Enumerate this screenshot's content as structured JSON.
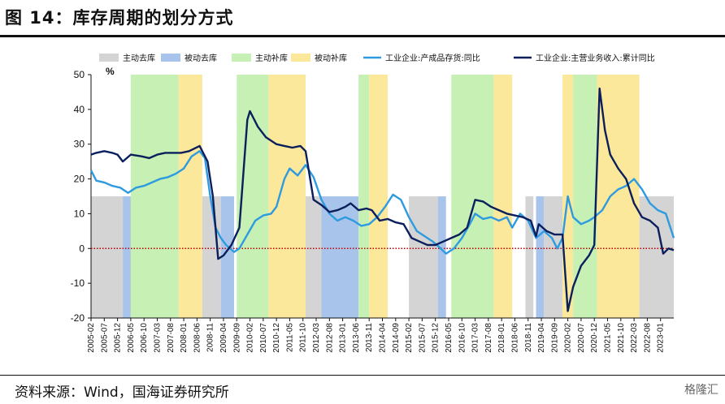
{
  "header": {
    "title": "图 14：库存周期的划分方式"
  },
  "footer": {
    "source": "资料来源：Wind，国海证券研究所",
    "watermark": "格隆汇"
  },
  "colors": {
    "active_destock": "#d4d4d4",
    "passive_destock": "#a8c4ea",
    "active_restock": "#c6f0b4",
    "passive_restock": "#fce89a",
    "inventory_line": "#2e9be0",
    "revenue_line": "#0a1f5c",
    "zero_line": "#c00000"
  },
  "chart_data": {
    "type": "line",
    "unit_label": "%",
    "ylim": [
      -20,
      50
    ],
    "yticks": [
      -20,
      -10,
      0,
      10,
      20,
      30,
      40,
      50
    ],
    "xlim": [
      "2005-02",
      "2023-06"
    ],
    "xticks": [
      "2005-02",
      "2005-07",
      "2005-12",
      "2006-05",
      "2006-10",
      "2007-03",
      "2007-08",
      "2008-01",
      "2008-06",
      "2008-11",
      "2009-04",
      "2009-09",
      "2010-02",
      "2010-07",
      "2010-12",
      "2011-05",
      "2011-10",
      "2012-03",
      "2012-08",
      "2013-01",
      "2013-06",
      "2013-11",
      "2014-04",
      "2014-09",
      "2015-02",
      "2015-07",
      "2015-12",
      "2016-05",
      "2016-10",
      "2017-03",
      "2017-08",
      "2018-01",
      "2018-06",
      "2018-11",
      "2019-04",
      "2019-09",
      "2020-02",
      "2020-07",
      "2020-12",
      "2021-05",
      "2021-10",
      "2022-03",
      "2022-08",
      "2023-01"
    ],
    "legend": [
      {
        "key": "active_destock",
        "label": "主动去库",
        "kind": "box"
      },
      {
        "key": "passive_destock",
        "label": "被动去库",
        "kind": "box"
      },
      {
        "key": "active_restock",
        "label": "主动补库",
        "kind": "box"
      },
      {
        "key": "passive_restock",
        "label": "被动补库",
        "kind": "box"
      },
      {
        "key": "inventory_line",
        "label": "工业企业:产成品存货:同比",
        "kind": "line"
      },
      {
        "key": "revenue_line",
        "label": "工业企业:主营业务收入:累计同比",
        "kind": "line"
      }
    ],
    "phases": [
      {
        "type": "active_destock",
        "start": "2005-02",
        "end": "2006-02"
      },
      {
        "type": "passive_destock",
        "start": "2006-02",
        "end": "2006-05"
      },
      {
        "type": "active_restock",
        "start": "2006-05",
        "end": "2007-11"
      },
      {
        "type": "passive_restock",
        "start": "2007-11",
        "end": "2008-08"
      },
      {
        "type": "active_destock",
        "start": "2008-08",
        "end": "2009-03"
      },
      {
        "type": "passive_destock",
        "start": "2009-03",
        "end": "2009-08"
      },
      {
        "type": "active_restock",
        "start": "2009-09",
        "end": "2010-09"
      },
      {
        "type": "passive_restock",
        "start": "2010-09",
        "end": "2011-11"
      },
      {
        "type": "active_destock",
        "start": "2011-11",
        "end": "2012-05"
      },
      {
        "type": "passive_destock",
        "start": "2012-05",
        "end": "2013-07"
      },
      {
        "type": "active_restock",
        "start": "2013-07",
        "end": "2013-11"
      },
      {
        "type": "passive_restock",
        "start": "2013-11",
        "end": "2014-06"
      },
      {
        "type": "active_destock",
        "start": "2015-02",
        "end": "2016-01"
      },
      {
        "type": "passive_destock",
        "start": "2016-01",
        "end": "2016-04"
      },
      {
        "type": "active_restock",
        "start": "2016-06",
        "end": "2017-10"
      },
      {
        "type": "passive_restock",
        "start": "2017-10",
        "end": "2018-05"
      },
      {
        "type": "active_destock",
        "start": "2018-10",
        "end": "2019-01"
      },
      {
        "type": "passive_destock",
        "start": "2019-02",
        "end": "2019-05"
      },
      {
        "type": "active_destock",
        "start": "2019-05",
        "end": "2019-12"
      },
      {
        "type": "passive_restock",
        "start": "2019-12",
        "end": "2020-04"
      },
      {
        "type": "active_restock",
        "start": "2020-04",
        "end": "2021-01"
      },
      {
        "type": "passive_restock",
        "start": "2021-01",
        "end": "2022-05"
      },
      {
        "type": "active_destock",
        "start": "2022-05",
        "end": "2023-06"
      }
    ],
    "series": [
      {
        "key": "inventory_line",
        "name": "工业企业:产成品存货:同比",
        "points": [
          [
            "2005-02",
            22.5
          ],
          [
            "2005-04",
            19.5
          ],
          [
            "2005-07",
            19
          ],
          [
            "2005-10",
            18
          ],
          [
            "2006-01",
            17.5
          ],
          [
            "2006-04",
            16
          ],
          [
            "2006-07",
            17.5
          ],
          [
            "2006-10",
            18
          ],
          [
            "2007-01",
            19
          ],
          [
            "2007-04",
            20
          ],
          [
            "2007-07",
            20.5
          ],
          [
            "2007-10",
            21.5
          ],
          [
            "2008-01",
            23
          ],
          [
            "2008-04",
            26.5
          ],
          [
            "2008-07",
            28
          ],
          [
            "2008-09",
            26
          ],
          [
            "2008-11",
            15
          ],
          [
            "2009-01",
            6
          ],
          [
            "2009-03",
            3
          ],
          [
            "2009-05",
            1
          ],
          [
            "2009-08",
            -1
          ],
          [
            "2009-10",
            0
          ],
          [
            "2010-01",
            4
          ],
          [
            "2010-04",
            8
          ],
          [
            "2010-07",
            9.5
          ],
          [
            "2010-10",
            10
          ],
          [
            "2010-12",
            12
          ],
          [
            "2011-03",
            20
          ],
          [
            "2011-05",
            23
          ],
          [
            "2011-08",
            21
          ],
          [
            "2011-11",
            24
          ],
          [
            "2012-02",
            20.5
          ],
          [
            "2012-05",
            14
          ],
          [
            "2012-08",
            10
          ],
          [
            "2012-11",
            8
          ],
          [
            "2013-02",
            9
          ],
          [
            "2013-05",
            8
          ],
          [
            "2013-08",
            6.5
          ],
          [
            "2013-11",
            7
          ],
          [
            "2014-02",
            9
          ],
          [
            "2014-05",
            12
          ],
          [
            "2014-08",
            15.5
          ],
          [
            "2014-11",
            14
          ],
          [
            "2015-02",
            9
          ],
          [
            "2015-05",
            5
          ],
          [
            "2015-08",
            3.5
          ],
          [
            "2015-11",
            2
          ],
          [
            "2016-02",
            0
          ],
          [
            "2016-04",
            -1.5
          ],
          [
            "2016-07",
            0
          ],
          [
            "2016-10",
            3
          ],
          [
            "2017-01",
            7
          ],
          [
            "2017-03",
            10
          ],
          [
            "2017-06",
            8.5
          ],
          [
            "2017-09",
            9
          ],
          [
            "2017-12",
            8
          ],
          [
            "2018-03",
            9
          ],
          [
            "2018-05",
            6
          ],
          [
            "2018-08",
            10
          ],
          [
            "2018-11",
            8
          ],
          [
            "2019-02",
            3
          ],
          [
            "2019-05",
            5
          ],
          [
            "2019-08",
            3
          ],
          [
            "2019-10",
            0
          ],
          [
            "2019-12",
            3
          ],
          [
            "2020-02",
            15
          ],
          [
            "2020-04",
            9
          ],
          [
            "2020-07",
            7
          ],
          [
            "2020-10",
            8
          ],
          [
            "2020-12",
            9
          ],
          [
            "2021-03",
            11
          ],
          [
            "2021-06",
            15
          ],
          [
            "2021-09",
            17
          ],
          [
            "2021-12",
            18
          ],
          [
            "2022-03",
            20
          ],
          [
            "2022-06",
            17
          ],
          [
            "2022-09",
            13
          ],
          [
            "2022-12",
            11
          ],
          [
            "2023-03",
            10
          ],
          [
            "2023-06",
            3
          ]
        ]
      },
      {
        "key": "revenue_line",
        "name": "工业企业:主营业务收入:累计同比",
        "points": [
          [
            "2005-02",
            27
          ],
          [
            "2005-04",
            27.5
          ],
          [
            "2005-07",
            28
          ],
          [
            "2005-10",
            27.5
          ],
          [
            "2005-12",
            27
          ],
          [
            "2006-02",
            25
          ],
          [
            "2006-05",
            27
          ],
          [
            "2006-09",
            26.5
          ],
          [
            "2006-12",
            26
          ],
          [
            "2007-03",
            27
          ],
          [
            "2007-06",
            27.5
          ],
          [
            "2007-09",
            27.5
          ],
          [
            "2007-12",
            27.5
          ],
          [
            "2008-03",
            28
          ],
          [
            "2008-07",
            29.5
          ],
          [
            "2008-10",
            25
          ],
          [
            "2008-12",
            15
          ],
          [
            "2009-02",
            -3
          ],
          [
            "2009-04",
            -2
          ],
          [
            "2009-07",
            1
          ],
          [
            "2009-10",
            6
          ],
          [
            "2010-01",
            37
          ],
          [
            "2010-02",
            39.5
          ],
          [
            "2010-05",
            35
          ],
          [
            "2010-08",
            32
          ],
          [
            "2010-12",
            30
          ],
          [
            "2011-03",
            29.5
          ],
          [
            "2011-06",
            29
          ],
          [
            "2011-09",
            29.5
          ],
          [
            "2011-11",
            28
          ],
          [
            "2012-02",
            14
          ],
          [
            "2012-05",
            12.5
          ],
          [
            "2012-08",
            10.5
          ],
          [
            "2012-11",
            11
          ],
          [
            "2013-02",
            12
          ],
          [
            "2013-04",
            13
          ],
          [
            "2013-07",
            11
          ],
          [
            "2013-10",
            11.5
          ],
          [
            "2013-12",
            11
          ],
          [
            "2014-03",
            8
          ],
          [
            "2014-06",
            8.5
          ],
          [
            "2014-09",
            7.5
          ],
          [
            "2014-12",
            7
          ],
          [
            "2015-03",
            3
          ],
          [
            "2015-06",
            2
          ],
          [
            "2015-09",
            1
          ],
          [
            "2015-12",
            1
          ],
          [
            "2016-03",
            2
          ],
          [
            "2016-06",
            3
          ],
          [
            "2016-09",
            4
          ],
          [
            "2016-12",
            6
          ],
          [
            "2017-03",
            14
          ],
          [
            "2017-06",
            13.5
          ],
          [
            "2017-09",
            12
          ],
          [
            "2017-12",
            11
          ],
          [
            "2018-03",
            10
          ],
          [
            "2018-06",
            9.5
          ],
          [
            "2018-09",
            9
          ],
          [
            "2018-12",
            8
          ],
          [
            "2019-02",
            3.5
          ],
          [
            "2019-03",
            7
          ],
          [
            "2019-06",
            5
          ],
          [
            "2019-09",
            4
          ],
          [
            "2019-12",
            4
          ],
          [
            "2020-02",
            -18
          ],
          [
            "2020-04",
            -11
          ],
          [
            "2020-07",
            -5
          ],
          [
            "2020-10",
            -2
          ],
          [
            "2020-12",
            1
          ],
          [
            "2021-02",
            46
          ],
          [
            "2021-04",
            34
          ],
          [
            "2021-06",
            27
          ],
          [
            "2021-09",
            23
          ],
          [
            "2021-12",
            20
          ],
          [
            "2022-03",
            13
          ],
          [
            "2022-06",
            9
          ],
          [
            "2022-09",
            8
          ],
          [
            "2022-12",
            6
          ],
          [
            "2023-02",
            -1.5
          ],
          [
            "2023-04",
            0
          ],
          [
            "2023-06",
            -0.5
          ]
        ]
      }
    ],
    "reference_line": {
      "y": 0,
      "style": "dotted"
    }
  }
}
